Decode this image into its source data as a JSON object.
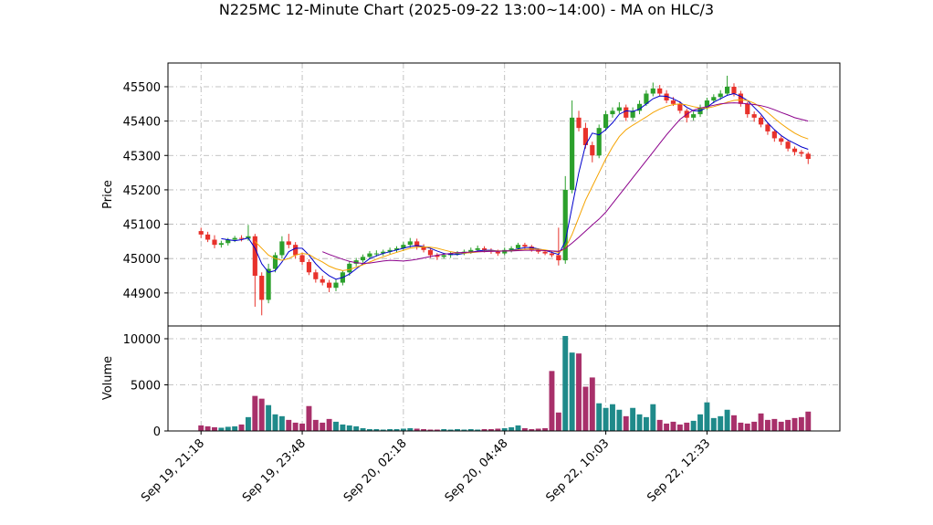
{
  "chart_data": [
    {
      "type": "candlestick",
      "title": "N225MC 12-Minute Chart (2025-09-22 13:00~14:00) - MA on HLC/3",
      "ylabel": "Price",
      "open": [
        45080,
        45070,
        45055,
        45040,
        45045,
        45055,
        45060,
        45058,
        45065,
        44950,
        44880,
        44970,
        45010,
        45050,
        45040,
        45010,
        44990,
        44960,
        44940,
        44930,
        44915,
        44930,
        44960,
        44985,
        44995,
        45005,
        45015,
        45015,
        45020,
        45025,
        45030,
        45040,
        45050,
        45035,
        45025,
        45010,
        45005,
        45010,
        45015,
        45015,
        45020,
        45025,
        45030,
        45025,
        45020,
        45015,
        45025,
        45030,
        45040,
        45035,
        45025,
        45020,
        45015,
        45010,
        44995,
        45200,
        45410,
        45380,
        45330,
        45300,
        45380,
        45420,
        45430,
        45440,
        45410,
        45430,
        45450,
        45480,
        45495,
        45480,
        45460,
        45450,
        45430,
        45410,
        45420,
        45440,
        45460,
        45470,
        45480,
        45500,
        45480,
        45450,
        45420,
        45410,
        45390,
        45370,
        45350,
        45340,
        45320,
        45310,
        45305
      ],
      "high": [
        45090,
        45078,
        45068,
        45052,
        45060,
        45066,
        45068,
        45098,
        45072,
        44960,
        44985,
        45018,
        45065,
        45072,
        45048,
        45018,
        44998,
        44968,
        44950,
        44938,
        44940,
        44966,
        44992,
        45002,
        45012,
        45022,
        45024,
        45026,
        45032,
        45036,
        45048,
        45060,
        45058,
        45042,
        45030,
        45016,
        45016,
        45020,
        45022,
        45026,
        45032,
        45038,
        45036,
        45030,
        45026,
        45032,
        45036,
        45046,
        45046,
        45040,
        45030,
        45026,
        45022,
        45090,
        45240,
        45460,
        45430,
        45395,
        45340,
        45390,
        45430,
        45440,
        45455,
        45448,
        45440,
        45460,
        45490,
        45512,
        45505,
        45490,
        45470,
        45458,
        45436,
        45428,
        45448,
        45468,
        45478,
        45490,
        45532,
        45510,
        45488,
        45456,
        45428,
        45416,
        45396,
        45374,
        45356,
        45346,
        45326,
        45316,
        45310
      ],
      "low": [
        45060,
        45048,
        45030,
        45032,
        45038,
        45048,
        45050,
        45052,
        44860,
        44835,
        44870,
        44960,
        45000,
        45030,
        45000,
        44982,
        44952,
        44930,
        44922,
        44902,
        44905,
        44922,
        44950,
        44978,
        44988,
        44998,
        45006,
        45008,
        45012,
        45018,
        45022,
        45032,
        45026,
        45018,
        45002,
        44996,
        45000,
        45002,
        45008,
        45010,
        45014,
        45018,
        45018,
        45014,
        45008,
        45010,
        45018,
        45024,
        45028,
        45020,
        45014,
        45010,
        45004,
        44980,
        44985,
        45190,
        45370,
        45320,
        45280,
        45292,
        45372,
        45410,
        45422,
        45400,
        45402,
        45420,
        45444,
        45472,
        45472,
        45452,
        45444,
        45422,
        45396,
        45402,
        45412,
        45432,
        45452,
        45462,
        45474,
        45472,
        45442,
        45410,
        45398,
        45382,
        45360,
        45340,
        45330,
        45312,
        45300,
        45296,
        45275
      ],
      "close": [
        45070,
        45055,
        45040,
        45045,
        45055,
        45060,
        45058,
        45065,
        44950,
        44880,
        44970,
        45010,
        45050,
        45040,
        45010,
        44990,
        44960,
        44940,
        44930,
        44915,
        44930,
        44960,
        44985,
        44995,
        45005,
        45015,
        45015,
        45020,
        45025,
        45030,
        45040,
        45050,
        45035,
        45025,
        45010,
        45005,
        45010,
        45015,
        45015,
        45020,
        45025,
        45030,
        45025,
        45020,
        45015,
        45025,
        45030,
        45040,
        45035,
        45025,
        45020,
        45015,
        45010,
        44995,
        45200,
        45410,
        45380,
        45330,
        45300,
        45380,
        45420,
        45430,
        45440,
        45410,
        45430,
        45450,
        45480,
        45495,
        45480,
        45460,
        45450,
        45430,
        45410,
        45420,
        45440,
        45460,
        45470,
        45480,
        45500,
        45480,
        45450,
        45420,
        45410,
        45390,
        45370,
        45350,
        45340,
        45320,
        45310,
        45305,
        45290
      ],
      "up_color": "#2ca02c",
      "down_color": "#e8322b",
      "series": [
        {
          "color": "#0000cc",
          "values": [
            null,
            null,
            null,
            45058,
            45055,
            45052,
            45055,
            45060,
            45030,
            44985,
            44960,
            44965,
            44990,
            45020,
            45030,
            45030,
            45010,
            44985,
            44965,
            44950,
            44940,
            44945,
            44955,
            44970,
            44985,
            45000,
            45008,
            45015,
            45020,
            45025,
            45030,
            45035,
            45038,
            45035,
            45030,
            45022,
            45015,
            45012,
            45012,
            45015,
            45018,
            45022,
            45024,
            45024,
            45022,
            45022,
            45024,
            45028,
            45032,
            45032,
            45028,
            45024,
            45018,
            45012,
            45050,
            45150,
            45250,
            45330,
            45365,
            45360,
            45375,
            45395,
            45420,
            45430,
            45428,
            45435,
            45450,
            45465,
            45473,
            45472,
            45465,
            45455,
            45440,
            45430,
            45430,
            45440,
            45455,
            45465,
            45475,
            45480,
            45472,
            45460,
            45440,
            45420,
            45395,
            45375,
            45358,
            45345,
            45335,
            45325,
            45318
          ]
        },
        {
          "color": "#f5a300",
          "values": [
            null,
            null,
            null,
            null,
            null,
            null,
            null,
            null,
            45050,
            45030,
            45010,
            45000,
            44995,
            45000,
            45010,
            45015,
            45012,
            45000,
            44990,
            44978,
            44970,
            44965,
            44968,
            44975,
            44982,
            44990,
            44998,
            45005,
            45012,
            45018,
            45024,
            45030,
            45033,
            45034,
            45033,
            45030,
            45025,
            45020,
            45017,
            45016,
            45017,
            45019,
            45021,
            45022,
            45022,
            45022,
            45023,
            45025,
            45027,
            45028,
            45027,
            45025,
            45022,
            45018,
            45030,
            45070,
            45120,
            45170,
            45210,
            45250,
            45290,
            45325,
            45355,
            45375,
            45388,
            45400,
            45412,
            45425,
            45435,
            45443,
            45448,
            45450,
            45447,
            45442,
            45438,
            45438,
            45442,
            45448,
            45455,
            45460,
            45462,
            45460,
            45452,
            45440,
            45425,
            45408,
            45392,
            45378,
            45365,
            45355,
            45348
          ]
        },
        {
          "color": "#8b008b",
          "values": [
            null,
            null,
            null,
            null,
            null,
            null,
            null,
            null,
            null,
            null,
            null,
            null,
            null,
            null,
            null,
            null,
            null,
            null,
            45020,
            45012,
            45005,
            44998,
            44992,
            44988,
            44986,
            44987,
            44990,
            44993,
            44995,
            44994,
            44993,
            44995,
            44998,
            45002,
            45006,
            45010,
            45013,
            45015,
            45017,
            45018,
            45019,
            45020,
            45020,
            45021,
            45021,
            45022,
            45022,
            45023,
            45024,
            45024,
            45024,
            45023,
            45022,
            45021,
            45030,
            45045,
            45062,
            45080,
            45098,
            45115,
            45135,
            45160,
            45185,
            45210,
            45235,
            45260,
            45285,
            45310,
            45335,
            45360,
            45383,
            45405,
            45420,
            45432,
            45438,
            45442,
            45446,
            45450,
            45452,
            45453,
            45452,
            45450,
            45448,
            45445,
            45440,
            45433,
            45425,
            45418,
            45410,
            45405,
            45400
          ]
        }
      ],
      "xlim": [
        -4.9,
        94.7
      ],
      "ylim": [
        44804,
        45569
      ],
      "yticks": [
        44900,
        45000,
        45100,
        45200,
        45300,
        45400,
        45500
      ],
      "grid": true
    },
    {
      "type": "bar",
      "ylabel": "Volume",
      "categories": [
        "Sep 19, 21:18",
        null,
        null,
        null,
        null,
        null,
        null,
        null,
        null,
        null,
        null,
        null,
        null,
        null,
        null,
        "Sep 19, 23:48",
        null,
        null,
        null,
        null,
        null,
        null,
        null,
        null,
        null,
        null,
        null,
        null,
        null,
        null,
        "Sep 20, 02:18",
        null,
        null,
        null,
        null,
        null,
        null,
        null,
        null,
        null,
        null,
        null,
        null,
        null,
        null,
        "Sep 20, 04:48",
        null,
        null,
        null,
        null,
        null,
        null,
        null,
        null,
        null,
        null,
        null,
        null,
        null,
        null,
        "Sep 22, 10:03",
        null,
        null,
        null,
        null,
        null,
        null,
        null,
        null,
        null,
        null,
        null,
        null,
        null,
        null,
        "Sep 22, 12:33",
        null,
        null,
        null,
        null,
        null,
        null,
        null,
        null,
        null,
        null,
        null,
        null,
        null,
        null,
        null
      ],
      "values": [
        600,
        500,
        400,
        350,
        450,
        500,
        700,
        1500,
        3800,
        3500,
        2800,
        1800,
        1600,
        1200,
        900,
        800,
        2700,
        1200,
        900,
        1300,
        1000,
        700,
        600,
        500,
        300,
        200,
        200,
        150,
        200,
        200,
        250,
        300,
        250,
        200,
        150,
        150,
        200,
        150,
        200,
        150,
        200,
        150,
        200,
        200,
        250,
        300,
        400,
        600,
        300,
        200,
        250,
        300,
        6500,
        2000,
        10300,
        8500,
        8400,
        4800,
        5800,
        3000,
        2500,
        2900,
        2300,
        1600,
        2500,
        1800,
        1500,
        2900,
        1200,
        800,
        1000,
        700,
        900,
        1100,
        1800,
        3100,
        1400,
        1600,
        2300,
        1700,
        900,
        800,
        1000,
        1900,
        1200,
        1300,
        1000,
        1200,
        1400,
        1500,
        2100
      ],
      "up_color": "#1f8a8a",
      "down_color": "#a8306a",
      "xlim": [
        -4.9,
        94.7
      ],
      "ylim": [
        0,
        11386
      ],
      "yticks": [
        0,
        5000,
        10000
      ],
      "grid": true
    }
  ]
}
